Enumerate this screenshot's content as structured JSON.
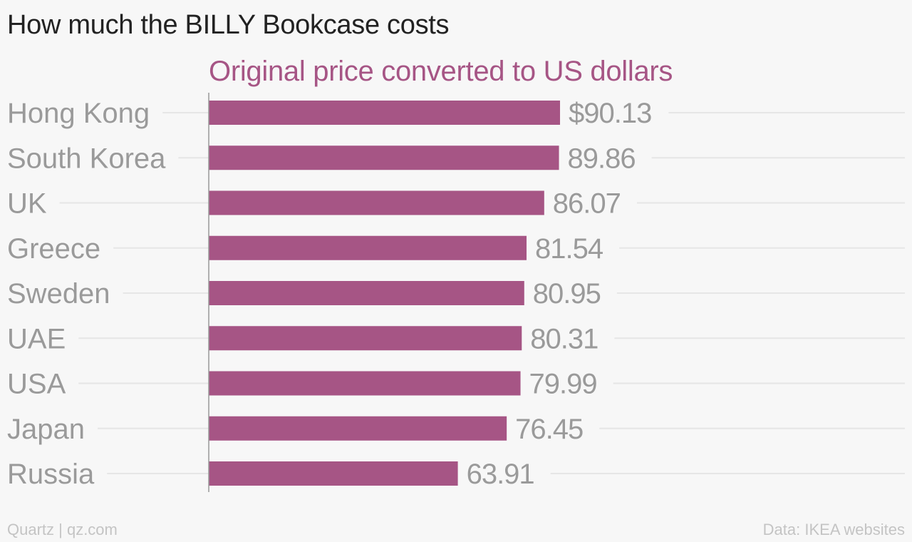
{
  "title": "How much the BILLY Bookcase costs",
  "subtitle": "Original price converted to US dollars",
  "colors": {
    "bar": "#a65585",
    "subtitle": "#a65585",
    "category_label": "#9a9a9a",
    "value_label": "#9a9a9a",
    "gridline": "#e6e6e6",
    "axis": "#999999",
    "background": "#f7f7f7"
  },
  "chart_data": {
    "type": "bar",
    "orientation": "horizontal",
    "title": "How much the BILLY Bookcase costs",
    "subtitle": "Original price converted to US dollars",
    "categories": [
      "Hong Kong",
      "South Korea",
      "UK",
      "Greece",
      "Sweden",
      "UAE",
      "USA",
      "Japan",
      "Russia"
    ],
    "values": [
      90.13,
      89.86,
      86.07,
      81.54,
      80.95,
      80.31,
      79.99,
      76.45,
      63.91
    ],
    "value_labels": [
      "$90.13",
      "89.86",
      "86.07",
      "81.54",
      "80.95",
      "80.31",
      "79.99",
      "76.45",
      "63.91"
    ],
    "xlim": [
      0,
      90.13
    ],
    "grid": true
  },
  "footer": {
    "source_left": "Quartz | qz.com",
    "source_right": "Data: IKEA websites"
  }
}
